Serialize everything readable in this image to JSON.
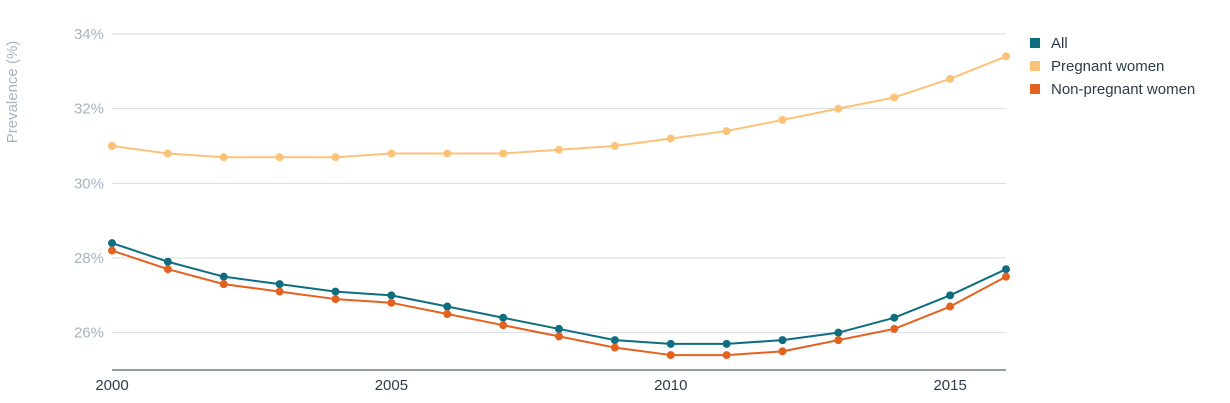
{
  "chart_data": {
    "type": "line",
    "x": [
      2000,
      2001,
      2002,
      2003,
      2004,
      2005,
      2006,
      2007,
      2008,
      2009,
      2010,
      2011,
      2012,
      2013,
      2014,
      2015,
      2016
    ],
    "x_ticks": [
      "2000",
      "2005",
      "2010",
      "2015"
    ],
    "y_ticks": [
      "26%",
      "28%",
      "30%",
      "32%",
      "34%"
    ],
    "y_tick_values": [
      26,
      28,
      30,
      32,
      34
    ],
    "xlim": [
      2000,
      2016
    ],
    "ylim": [
      25,
      34
    ],
    "ylabel": "Prevalence (%)",
    "grid": true,
    "legend_position": "top-right",
    "series": [
      {
        "name": "All",
        "color": "#0e6e80",
        "values": [
          28.4,
          27.9,
          27.5,
          27.3,
          27.1,
          27.0,
          26.7,
          26.4,
          26.1,
          25.8,
          25.7,
          25.7,
          25.8,
          26.0,
          26.4,
          27.0,
          27.7
        ]
      },
      {
        "name": "Pregnant women",
        "color": "#fbc27a",
        "values": [
          31.0,
          30.8,
          30.7,
          30.7,
          30.7,
          30.8,
          30.8,
          30.8,
          30.9,
          31.0,
          31.2,
          31.4,
          31.7,
          32.0,
          32.3,
          32.8,
          33.4
        ]
      },
      {
        "name": "Non-pregnant women",
        "color": "#e4621f",
        "values": [
          28.2,
          27.7,
          27.3,
          27.1,
          26.9,
          26.8,
          26.5,
          26.2,
          25.9,
          25.6,
          25.4,
          25.4,
          25.5,
          25.8,
          26.1,
          26.7,
          27.5
        ]
      }
    ]
  }
}
